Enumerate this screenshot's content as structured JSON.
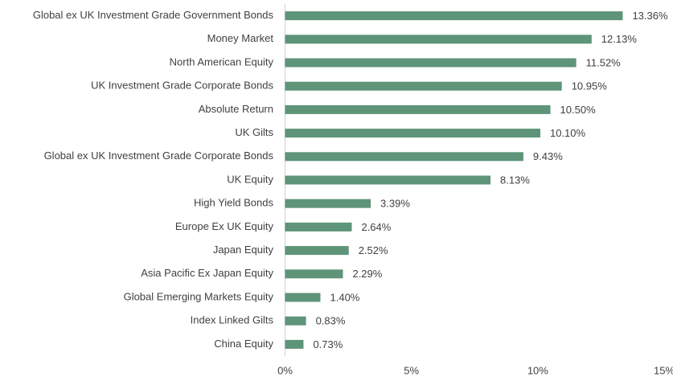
{
  "chart_data": {
    "type": "hbar",
    "categories": [
      "Global ex UK Investment Grade Government Bonds",
      "Money Market",
      "North American Equity",
      "UK Investment Grade Corporate Bonds",
      "Absolute Return",
      "UK Gilts",
      "Global ex UK Investment Grade Corporate Bonds",
      "UK Equity",
      "High Yield Bonds",
      "Europe Ex UK Equity",
      "Japan Equity",
      "Asia Pacific Ex Japan Equity",
      "Global Emerging Markets Equity",
      "Index Linked Gilts",
      "China Equity"
    ],
    "values": [
      13.36,
      12.13,
      11.52,
      10.95,
      10.5,
      10.1,
      9.43,
      8.13,
      3.39,
      2.64,
      2.52,
      2.29,
      1.4,
      0.83,
      0.73
    ],
    "value_labels": [
      "13.36%",
      "12.13%",
      "11.52%",
      "10.95%",
      "10.50%",
      "10.10%",
      "9.43%",
      "8.13%",
      "3.39%",
      "2.64%",
      "2.52%",
      "2.29%",
      "1.40%",
      "0.83%",
      "0.73%"
    ],
    "color": "#5e9478",
    "xlim": [
      0,
      15
    ],
    "xticks": [
      {
        "value": 0,
        "label": "0%"
      },
      {
        "value": 5,
        "label": "5%"
      },
      {
        "value": 10,
        "label": "10%"
      },
      {
        "value": 15,
        "label": "15%"
      }
    ],
    "grid": false
  }
}
